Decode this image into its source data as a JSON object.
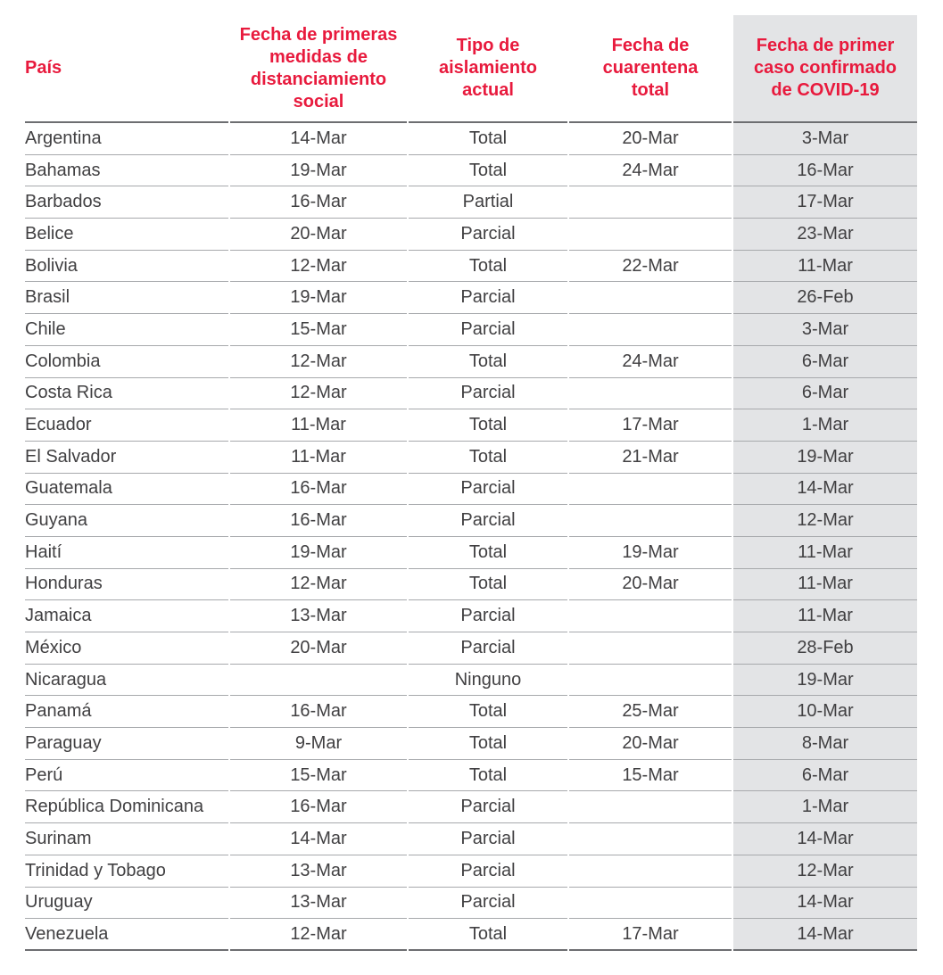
{
  "chart_data": {
    "type": "table",
    "columns": [
      {
        "id": "pais",
        "label": "País",
        "label_lines": [
          "País"
        ],
        "align": "left",
        "highlighted": false
      },
      {
        "id": "medidas",
        "label": "Fecha de primeras medidas de distanciamiento social",
        "label_lines": [
          "Fecha de primeras",
          "medidas de",
          "distanciamiento",
          "social"
        ],
        "align": "center",
        "highlighted": false
      },
      {
        "id": "aislamiento",
        "label": "Tipo de aislamiento actual",
        "label_lines": [
          "Tipo de",
          "aislamiento",
          "actual"
        ],
        "align": "center",
        "highlighted": false
      },
      {
        "id": "cuarentena",
        "label": "Fecha de cuarentena total",
        "label_lines": [
          "Fecha de",
          "cuarentena",
          "total"
        ],
        "align": "center",
        "highlighted": false
      },
      {
        "id": "primer_caso",
        "label": "Fecha de primer caso confirmado de COVID-19",
        "label_lines": [
          "Fecha de primer",
          "caso confirmado",
          "de COVID-19"
        ],
        "align": "center",
        "highlighted": true
      }
    ],
    "rows": [
      {
        "pais": "Argentina",
        "medidas": "14-Mar",
        "aislamiento": "Total",
        "cuarentena": "20-Mar",
        "primer_caso": "3-Mar"
      },
      {
        "pais": "Bahamas",
        "medidas": "19-Mar",
        "aislamiento": "Total",
        "cuarentena": "24-Mar",
        "primer_caso": "16-Mar"
      },
      {
        "pais": "Barbados",
        "medidas": "16-Mar",
        "aislamiento": "Partial",
        "cuarentena": "",
        "primer_caso": "17-Mar"
      },
      {
        "pais": "Belice",
        "medidas": "20-Mar",
        "aislamiento": "Parcial",
        "cuarentena": "",
        "primer_caso": "23-Mar"
      },
      {
        "pais": "Bolivia",
        "medidas": "12-Mar",
        "aislamiento": "Total",
        "cuarentena": "22-Mar",
        "primer_caso": "11-Mar"
      },
      {
        "pais": "Brasil",
        "medidas": "19-Mar",
        "aislamiento": "Parcial",
        "cuarentena": "",
        "primer_caso": "26-Feb"
      },
      {
        "pais": "Chile",
        "medidas": "15-Mar",
        "aislamiento": "Parcial",
        "cuarentena": "",
        "primer_caso": "3-Mar"
      },
      {
        "pais": "Colombia",
        "medidas": "12-Mar",
        "aislamiento": "Total",
        "cuarentena": "24-Mar",
        "primer_caso": "6-Mar"
      },
      {
        "pais": "Costa Rica",
        "medidas": "12-Mar",
        "aislamiento": "Parcial",
        "cuarentena": "",
        "primer_caso": "6-Mar"
      },
      {
        "pais": "Ecuador",
        "medidas": "11-Mar",
        "aislamiento": "Total",
        "cuarentena": "17-Mar",
        "primer_caso": "1-Mar"
      },
      {
        "pais": "El Salvador",
        "medidas": "11-Mar",
        "aislamiento": "Total",
        "cuarentena": "21-Mar",
        "primer_caso": "19-Mar"
      },
      {
        "pais": "Guatemala",
        "medidas": "16-Mar",
        "aislamiento": "Parcial",
        "cuarentena": "",
        "primer_caso": "14-Mar"
      },
      {
        "pais": "Guyana",
        "medidas": "16-Mar",
        "aislamiento": "Parcial",
        "cuarentena": "",
        "primer_caso": "12-Mar"
      },
      {
        "pais": "Haití",
        "medidas": "19-Mar",
        "aislamiento": "Total",
        "cuarentena": "19-Mar",
        "primer_caso": "11-Mar"
      },
      {
        "pais": "Honduras",
        "medidas": "12-Mar",
        "aislamiento": "Total",
        "cuarentena": "20-Mar",
        "primer_caso": "11-Mar"
      },
      {
        "pais": "Jamaica",
        "medidas": "13-Mar",
        "aislamiento": "Parcial",
        "cuarentena": "",
        "primer_caso": "11-Mar"
      },
      {
        "pais": "México",
        "medidas": "20-Mar",
        "aislamiento": "Parcial",
        "cuarentena": "",
        "primer_caso": "28-Feb"
      },
      {
        "pais": "Nicaragua",
        "medidas": "",
        "aislamiento": "Ninguno",
        "cuarentena": "",
        "primer_caso": "19-Mar"
      },
      {
        "pais": "Panamá",
        "medidas": "16-Mar",
        "aislamiento": "Total",
        "cuarentena": "25-Mar",
        "primer_caso": "10-Mar"
      },
      {
        "pais": "Paraguay",
        "medidas": "9-Mar",
        "aislamiento": "Total",
        "cuarentena": "20-Mar",
        "primer_caso": "8-Mar"
      },
      {
        "pais": "Perú",
        "medidas": "15-Mar",
        "aislamiento": "Total",
        "cuarentena": "15-Mar",
        "primer_caso": "6-Mar"
      },
      {
        "pais": "República Dominicana",
        "medidas": "16-Mar",
        "aislamiento": "Parcial",
        "cuarentena": "",
        "primer_caso": "1-Mar"
      },
      {
        "pais": "Surinam",
        "medidas": "14-Mar",
        "aislamiento": "Parcial",
        "cuarentena": "",
        "primer_caso": "14-Mar"
      },
      {
        "pais": "Trinidad y Tobago",
        "medidas": "13-Mar",
        "aislamiento": "Parcial",
        "cuarentena": "",
        "primer_caso": "12-Mar"
      },
      {
        "pais": "Uruguay",
        "medidas": "13-Mar",
        "aislamiento": "Parcial",
        "cuarentena": "",
        "primer_caso": "14-Mar"
      },
      {
        "pais": "Venezuela",
        "medidas": "12-Mar",
        "aislamiento": "Total",
        "cuarentena": "17-Mar",
        "primer_caso": "14-Mar"
      }
    ]
  },
  "colors": {
    "header_text": "#e81a3d",
    "highlight_column_bg": "#e3e4e6",
    "row_divider": "#a7a9ac",
    "strong_border": "#6d6e71",
    "body_text": "#414042",
    "background": "#ffffff"
  }
}
